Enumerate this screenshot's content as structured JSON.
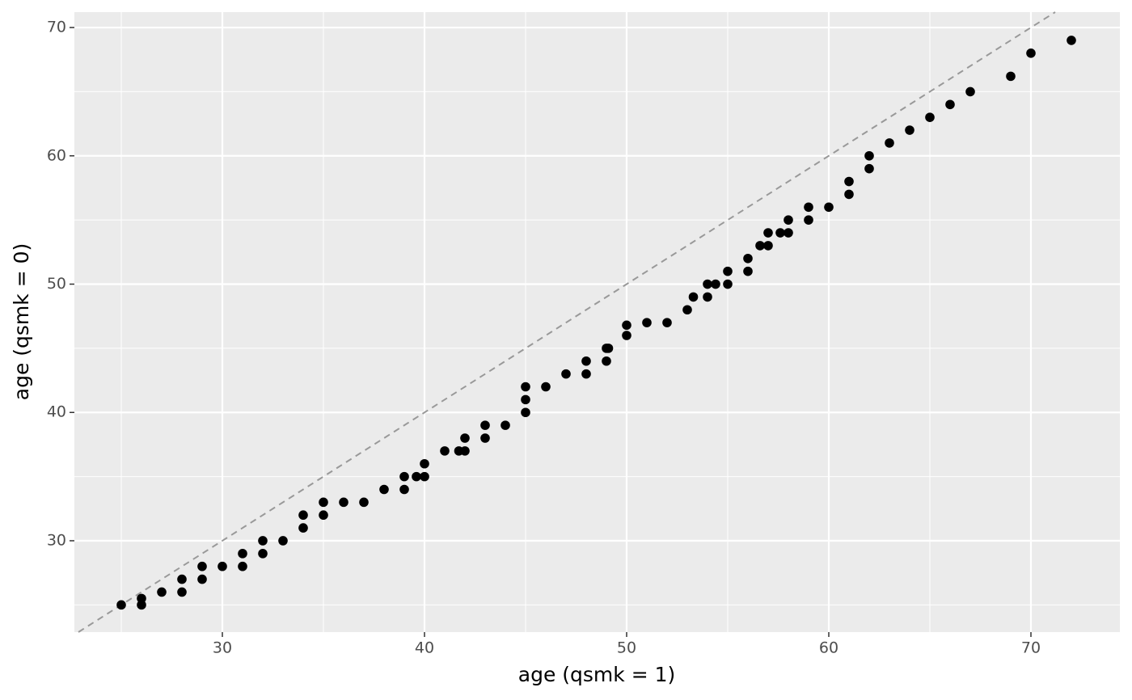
{
  "chart_data": {
    "type": "scatter",
    "x_label": "age (qsmk = 1)",
    "y_label": "age (qsmk = 0)",
    "x": [
      25,
      26,
      26,
      27,
      28,
      28,
      29,
      29,
      30,
      31,
      31,
      32,
      32,
      33,
      34,
      34,
      35,
      35,
      36,
      37,
      38,
      39,
      39,
      39.6,
      40,
      40,
      41,
      41.7,
      42,
      42,
      43,
      43,
      44,
      45,
      45,
      45,
      46,
      47,
      48,
      48,
      49,
      49.1,
      49,
      50,
      50,
      51,
      52,
      53,
      53.3,
      54,
      54,
      54.4,
      55,
      55,
      56,
      56,
      56.6,
      57,
      57,
      57.6,
      58,
      58,
      59,
      59,
      60,
      61,
      61,
      62,
      62,
      63,
      64,
      65,
      66,
      67,
      69,
      70,
      72
    ],
    "y": [
      25,
      25.5,
      25,
      26,
      27,
      26,
      28,
      27,
      28,
      29,
      28,
      30,
      29,
      30,
      32,
      31,
      33,
      32,
      33,
      33,
      34,
      35,
      34,
      35,
      36,
      35,
      37,
      37,
      38,
      37,
      39,
      38,
      39,
      42,
      41,
      40,
      42,
      43,
      44,
      43,
      45,
      45,
      44,
      46.8,
      46,
      47,
      47,
      48,
      49,
      50,
      49,
      50,
      51,
      50,
      52,
      51,
      53,
      54,
      53,
      54,
      55,
      54,
      56,
      55,
      56,
      58,
      57,
      60,
      59,
      61,
      62,
      63,
      64,
      65,
      66.2,
      68,
      69
    ],
    "color": "#000000",
    "xlim": [
      22.68,
      74.4
    ],
    "ylim": [
      22.88,
      71.2
    ],
    "xticks": [
      30,
      40,
      50,
      60,
      70
    ],
    "yticks": [
      30,
      40,
      50,
      60,
      70
    ],
    "grid": true,
    "minor_grid": true,
    "diagonal": true,
    "diagonal_color": "#999999"
  }
}
